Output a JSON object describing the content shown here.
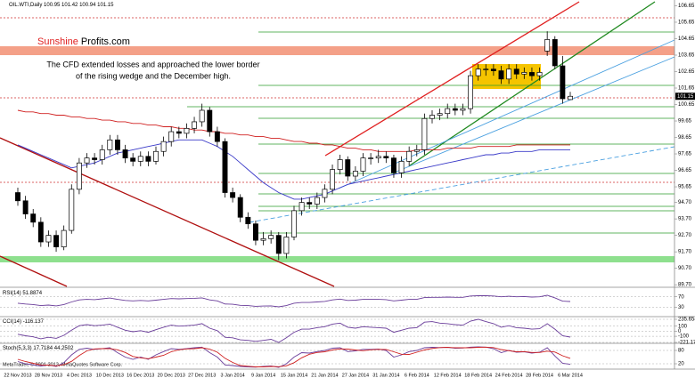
{
  "header": {
    "logo_red": "Sunshine",
    "logo_black": "Profits.com",
    "annotation": [
      "The CFD extended losses and approached the lower border",
      "of the rising wedge and the December high."
    ],
    "footer": "MetaTrader, © 2001-2013, MetaQuotes Software Corp."
  },
  "chart_data": [
    {
      "type": "candlestick",
      "title": "OIL.WTI,Daily",
      "categories": [
        "22 Nov 2013",
        null,
        null,
        null,
        "28 Nov 2013",
        null,
        null,
        null,
        "4 Dec 2013",
        null,
        null,
        null,
        "10 Dec 2013",
        null,
        null,
        null,
        "16 Dec 2013",
        null,
        null,
        null,
        "20 Dec 2013",
        null,
        null,
        null,
        "27 Dec 2013",
        null,
        null,
        null,
        "3 Jan 2014",
        null,
        null,
        null,
        "9 Jan 2014",
        null,
        null,
        null,
        "15 Jan 2014",
        null,
        null,
        null,
        "21 Jan 2014",
        null,
        null,
        null,
        "27 Jan 2014",
        null,
        null,
        null,
        "31 Jan 2014",
        null,
        null,
        null,
        "6 Feb 2014",
        null,
        null,
        null,
        "12 Feb 2014",
        null,
        null,
        null,
        "18 Feb 2014",
        null,
        null,
        null,
        "24 Feb 2014",
        null,
        null,
        null,
        "28 Feb 2014",
        null,
        null,
        null,
        "6 Mar 2014"
      ],
      "open": [
        95.3,
        94.8,
        94.0,
        93.5,
        92.3,
        92.7,
        92.0,
        93.0,
        95.5,
        97.1,
        97.4,
        97.3,
        97.9,
        98.5,
        97.9,
        97.4,
        97.2,
        97.5,
        97.2,
        97.8,
        98.4,
        99.0,
        98.9,
        99.2,
        99.6,
        100.3,
        99.0,
        98.4,
        95.3,
        95.0,
        93.8,
        93.4,
        92.4,
        92.5,
        92.7,
        91.6,
        92.6,
        94.2,
        94.7,
        94.6,
        95.0,
        95.5,
        96.7,
        97.3,
        96.3,
        96.6,
        97.4,
        97.4,
        97.5,
        97.4,
        96.5,
        97.2,
        97.8,
        97.9,
        99.8,
        100.0,
        100.1,
        100.4,
        100.3,
        100.4,
        102.4,
        102.8,
        102.8,
        102.7,
        102.2,
        102.8,
        102.5,
        102.6,
        102.4,
        103.9,
        104.6,
        103.0,
        100.95
      ],
      "high": [
        95.6,
        95.1,
        94.3,
        93.8,
        93.0,
        93.0,
        93.3,
        95.8,
        97.4,
        97.7,
        97.7,
        98.2,
        98.8,
        98.8,
        98.2,
        97.7,
        97.8,
        97.8,
        98.1,
        98.7,
        99.3,
        99.3,
        99.5,
        99.9,
        100.7,
        100.5,
        99.3,
        98.6,
        95.6,
        95.2,
        94.1,
        93.6,
        92.9,
        93.0,
        92.9,
        92.9,
        94.5,
        95.0,
        95.0,
        95.3,
        95.8,
        97.0,
        97.6,
        97.5,
        96.9,
        97.7,
        97.7,
        97.9,
        97.8,
        97.6,
        97.5,
        98.1,
        98.2,
        100.1,
        100.3,
        100.4,
        100.7,
        100.7,
        100.7,
        102.7,
        103.1,
        103.1,
        103.1,
        103.0,
        103.1,
        103.1,
        102.9,
        102.9,
        102.9,
        105.1,
        104.8,
        103.6,
        101.42
      ],
      "low": [
        94.5,
        93.7,
        93.2,
        92.0,
        92.0,
        91.7,
        91.8,
        92.8,
        95.2,
        96.8,
        97.0,
        97.0,
        97.6,
        97.6,
        97.1,
        96.9,
        96.9,
        96.9,
        97.0,
        97.5,
        98.1,
        98.6,
        98.6,
        98.9,
        99.3,
        98.7,
        98.1,
        95.0,
        94.7,
        93.5,
        93.1,
        92.1,
        92.1,
        92.2,
        91.2,
        91.3,
        92.4,
        93.9,
        94.3,
        94.3,
        94.7,
        95.2,
        96.4,
        96.0,
        96.0,
        96.3,
        97.0,
        97.1,
        97.1,
        96.2,
        96.2,
        96.9,
        97.5,
        97.6,
        99.5,
        99.7,
        99.8,
        100.0,
        100.0,
        100.1,
        102.1,
        102.4,
        102.4,
        101.9,
        101.9,
        102.2,
        102.2,
        102.1,
        102.1,
        103.6,
        102.8,
        100.7,
        100.94
      ],
      "close": [
        94.8,
        94.0,
        93.5,
        92.3,
        92.7,
        92.0,
        93.0,
        95.5,
        97.1,
        97.4,
        97.3,
        97.9,
        98.5,
        97.9,
        97.4,
        97.2,
        97.5,
        97.2,
        97.8,
        98.4,
        99.0,
        98.9,
        99.2,
        99.6,
        100.3,
        99.0,
        98.4,
        95.3,
        95.0,
        93.8,
        93.4,
        92.4,
        92.5,
        92.7,
        91.6,
        92.6,
        94.2,
        94.7,
        94.6,
        95.0,
        95.5,
        96.7,
        97.3,
        96.3,
        96.6,
        97.4,
        97.4,
        97.5,
        97.4,
        96.5,
        97.2,
        97.8,
        97.9,
        99.8,
        100.0,
        100.1,
        100.4,
        100.3,
        100.4,
        102.4,
        102.8,
        102.8,
        102.7,
        102.2,
        102.8,
        102.5,
        102.6,
        102.4,
        102.6,
        104.6,
        103.0,
        101.0,
        101.15
      ],
      "series": [
        {
          "color": "#3a3ac8",
          "values": [
            98.2,
            98.0,
            97.8,
            97.6,
            97.4,
            97.2,
            97.0,
            96.8,
            96.9,
            97.0,
            97.1,
            97.3,
            97.5,
            97.7,
            97.8,
            97.9,
            98.0,
            98.1,
            98.2,
            98.3,
            98.4,
            98.5,
            98.5,
            98.5,
            98.5,
            98.3,
            98.1,
            97.8,
            97.5,
            97.1,
            96.7,
            96.3,
            95.9,
            95.6,
            95.3,
            95.1,
            94.9,
            94.9,
            95.0,
            95.1,
            95.2,
            95.4,
            95.6,
            95.8,
            95.9,
            96.0,
            96.1,
            96.2,
            96.3,
            96.4,
            96.5,
            96.6,
            96.7,
            96.8,
            96.9,
            97.0,
            97.1,
            97.2,
            97.3,
            97.4,
            97.5,
            97.6,
            97.6,
            97.7,
            97.7,
            97.8,
            97.8,
            97.8,
            97.9,
            97.9,
            97.9,
            97.9,
            97.9
          ]
        },
        {
          "color": "#d02020",
          "values": [
            100.3,
            100.2,
            100.2,
            100.1,
            100.1,
            100.0,
            100.0,
            99.9,
            99.9,
            99.8,
            99.8,
            99.7,
            99.7,
            99.6,
            99.6,
            99.5,
            99.5,
            99.4,
            99.4,
            99.3,
            99.3,
            99.2,
            99.2,
            99.1,
            99.1,
            99.0,
            99.0,
            98.9,
            98.9,
            98.8,
            98.8,
            98.7,
            98.7,
            98.6,
            98.6,
            98.5,
            98.4,
            98.4,
            98.3,
            98.3,
            98.2,
            98.2,
            98.1,
            98.0,
            98.0,
            97.9,
            97.9,
            97.8,
            97.8,
            97.8,
            97.8,
            97.8,
            97.9,
            97.9,
            97.9,
            97.9,
            98.0,
            98.0,
            98.0,
            98.0,
            98.1,
            98.1,
            98.1,
            98.1,
            98.1,
            98.2,
            98.2,
            98.2,
            98.2,
            98.2,
            98.2,
            98.2,
            98.2
          ]
        }
      ],
      "ylim": [
        89.6,
        107.0
      ],
      "yticks": [
        106.65,
        105.65,
        104.65,
        103.65,
        102.65,
        101.65,
        100.65,
        99.65,
        98.65,
        97.65,
        96.65,
        95.65,
        {
          "value": 94.7,
          "label": "94.70"
        },
        {
          "value": 93.7,
          "label": "93.70"
        },
        {
          "value": 92.7,
          "label": "92.70"
        },
        {
          "value": 91.7,
          "label": "91.70"
        },
        {
          "value": 90.7,
          "label": "90.70"
        },
        {
          "value": 89.7,
          "label": "89.70"
        }
      ],
      "up_color": "#ffffff",
      "down_color": "#000000"
    },
    {
      "type": "line",
      "title": "RSI(14)",
      "color": "#6a3d9a",
      "values": [
        45,
        42,
        40,
        36,
        38,
        35,
        40,
        50,
        58,
        60,
        59,
        62,
        65,
        60,
        56,
        54,
        56,
        54,
        57,
        60,
        63,
        62,
        63,
        64,
        66,
        58,
        54,
        42,
        41,
        37,
        36,
        33,
        34,
        35,
        31,
        36,
        45,
        48,
        48,
        50,
        52,
        58,
        61,
        56,
        57,
        60,
        60,
        60,
        59,
        54,
        57,
        60,
        60,
        67,
        68,
        68,
        69,
        68,
        68,
        73,
        74,
        74,
        73,
        70,
        72,
        70,
        71,
        69,
        70,
        76,
        66,
        53,
        51.8874
      ],
      "ylim": [
        0,
        100
      ],
      "yticks": [
        70,
        30
      ]
    },
    {
      "type": "line",
      "title": "CCI(14)",
      "color": "#6a3d9a",
      "values": [
        -60,
        -90,
        -110,
        -150,
        -120,
        -140,
        -80,
        20,
        110,
        130,
        110,
        120,
        140,
        80,
        20,
        -10,
        10,
        -20,
        30,
        80,
        120,
        100,
        110,
        120,
        150,
        60,
        10,
        -120,
        -130,
        -170,
        -180,
        -200,
        -180,
        -160,
        -221,
        -130,
        -20,
        40,
        40,
        70,
        90,
        140,
        160,
        80,
        60,
        90,
        80,
        70,
        60,
        -20,
        20,
        60,
        70,
        180,
        190,
        160,
        150,
        130,
        120,
        200,
        235,
        190,
        150,
        80,
        110,
        70,
        60,
        40,
        50,
        150,
        40,
        -90,
        -116.137
      ],
      "ylim": [
        -221.174,
        235.6544
      ],
      "yticks": [
        235.6544,
        100,
        0,
        -100,
        -221.174
      ]
    },
    {
      "type": "line",
      "title": "Stoch(5,3,3)",
      "series": [
        {
          "color": "#6a3d9a",
          "values": [
            30,
            20,
            15,
            10,
            15,
            8,
            25,
            60,
            85,
            90,
            85,
            88,
            92,
            70,
            50,
            40,
            50,
            40,
            60,
            75,
            88,
            85,
            88,
            92,
            95,
            70,
            50,
            15,
            12,
            8,
            6,
            5,
            8,
            10,
            4,
            20,
            50,
            70,
            68,
            75,
            80,
            90,
            92,
            75,
            78,
            85,
            85,
            86,
            80,
            50,
            60,
            75,
            80,
            92,
            94,
            93,
            94,
            90,
            91,
            95,
            96,
            95,
            88,
            70,
            80,
            72,
            74,
            68,
            72,
            92,
            55,
            22,
            17.7184
          ]
        },
        {
          "color": "#d02020",
          "values": [
            40,
            30,
            22,
            15,
            14,
            11,
            16,
            31,
            57,
            78,
            87,
            88,
            88,
            83,
            71,
            53,
            47,
            43,
            50,
            58,
            74,
            83,
            87,
            88,
            92,
            86,
            72,
            45,
            26,
            12,
            9,
            6,
            6,
            8,
            7,
            11,
            25,
            47,
            63,
            71,
            74,
            82,
            87,
            86,
            82,
            79,
            83,
            85,
            84,
            74,
            63,
            62,
            72,
            82,
            89,
            93,
            94,
            92,
            92,
            92,
            94,
            95,
            93,
            84,
            79,
            74,
            75,
            71,
            71,
            77,
            73,
            56,
            44.2502
          ]
        }
      ],
      "ylim": [
        0,
        100
      ],
      "yticks": [
        80,
        20
      ]
    }
  ]
}
